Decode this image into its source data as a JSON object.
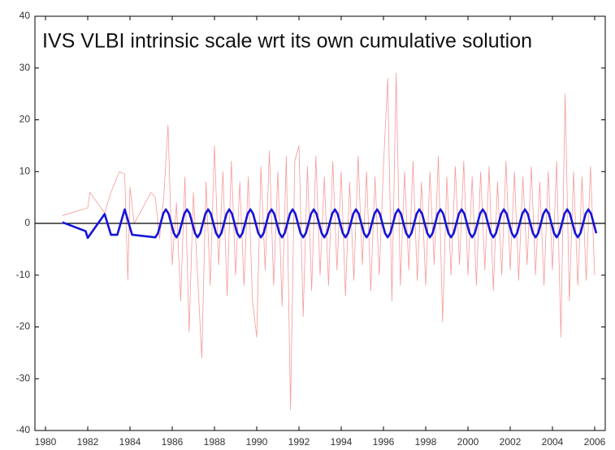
{
  "chart_data": {
    "type": "line",
    "title": "IVS VLBI intrinsic scale wrt its own cumulative solution",
    "xlim": [
      1979.5,
      2006.5
    ],
    "xticks": [
      1980,
      1982,
      1984,
      1986,
      1988,
      1990,
      1992,
      1994,
      1996,
      1998,
      2000,
      2002,
      2004,
      2006
    ],
    "ylim": [
      -40,
      40
    ],
    "yticks": [
      -40,
      -30,
      -20,
      -10,
      0,
      10,
      20,
      30,
      40
    ],
    "zero_line": true,
    "series": [
      {
        "color": "#ee2020",
        "x": [
          1980.8,
          1982.0,
          1982.1,
          1982.8,
          1983.1,
          1983.5,
          1983.75,
          1983.9,
          1984.0,
          1984.2,
          1985.0,
          1985.2,
          1985.4,
          1985.6,
          1985.8,
          1986.0,
          1986.2,
          1986.4,
          1986.6,
          1986.8,
          1987.0,
          1987.2,
          1987.4,
          1987.6,
          1987.8,
          1988.0,
          1988.2,
          1988.4,
          1988.6,
          1988.8,
          1989.0,
          1989.2,
          1989.4,
          1989.6,
          1989.8,
          1990.0,
          1990.2,
          1990.4,
          1990.6,
          1990.8,
          1991.0,
          1991.2,
          1991.4,
          1991.6,
          1991.8,
          1992.0,
          1992.2,
          1992.4,
          1992.6,
          1992.8,
          1993.0,
          1993.2,
          1993.4,
          1993.6,
          1993.8,
          1994.0,
          1994.2,
          1994.4,
          1994.6,
          1994.8,
          1995.0,
          1995.2,
          1995.4,
          1995.6,
          1995.8,
          1996.0,
          1996.2,
          1996.4,
          1996.6,
          1996.8,
          1997.0,
          1997.2,
          1997.4,
          1997.6,
          1997.8,
          1998.0,
          1998.2,
          1998.4,
          1998.6,
          1998.8,
          1999.0,
          1999.2,
          1999.4,
          1999.6,
          1999.8,
          2000.0,
          2000.2,
          2000.4,
          2000.6,
          2000.8,
          2001.0,
          2001.2,
          2001.4,
          2001.6,
          2001.8,
          2002.0,
          2002.2,
          2002.4,
          2002.6,
          2002.8,
          2003.0,
          2003.2,
          2003.4,
          2003.6,
          2003.8,
          2004.0,
          2004.2,
          2004.4,
          2004.6,
          2004.8,
          2005.0,
          2005.2,
          2005.4,
          2005.6,
          2005.8,
          2006.0
        ],
        "values": [
          1.5,
          3,
          6,
          2,
          6,
          10,
          9.5,
          -11,
          7,
          0,
          6,
          5,
          -3,
          5,
          19,
          -8,
          4,
          -15,
          9,
          -21,
          6,
          -10,
          -26,
          8,
          -12,
          15,
          -8,
          10,
          -14,
          12,
          -10,
          8,
          -12,
          9,
          -15,
          -22,
          11,
          -9,
          14,
          -12,
          10,
          -16,
          13,
          -36,
          12,
          15,
          -18,
          11,
          -13,
          13,
          -10,
          9,
          -12,
          12,
          -9,
          10,
          -14,
          8,
          -11,
          13,
          -8,
          10,
          -13,
          9,
          -10,
          11,
          28,
          -15,
          29,
          -12,
          10,
          -9,
          12,
          -11,
          8,
          -12,
          10,
          -8,
          13,
          -19,
          9,
          -10,
          11,
          -8,
          12,
          -10,
          9,
          -12,
          10,
          -9,
          11,
          -13,
          8,
          -10,
          12,
          -9,
          10,
          -11,
          9,
          -8,
          11,
          -10,
          8,
          -12,
          10,
          -9,
          12,
          -22,
          25,
          -15,
          10,
          -12,
          9,
          -11,
          11,
          -10
        ]
      },
      {
        "color": "#1414d8",
        "x": [
          1980.8,
          1981.9,
          1982.0,
          1982.8,
          1983.1,
          1983.4,
          1983.75,
          1984.1,
          1985.2,
          1985.325,
          1985.45,
          1985.575,
          1985.7,
          1985.825,
          1985.95,
          1986.075,
          1986.2,
          1986.325,
          1986.45,
          1986.575,
          1986.7,
          1986.825,
          1986.95,
          1987.075,
          1987.2,
          1987.325,
          1987.45,
          1987.575,
          1987.7,
          1987.825,
          1987.95,
          1988.075,
          1988.2,
          1988.325,
          1988.45,
          1988.575,
          1988.7,
          1988.825,
          1988.95,
          1989.075,
          1989.2,
          1989.325,
          1989.45,
          1989.575,
          1989.7,
          1989.825,
          1989.95,
          1990.075,
          1990.2,
          1990.325,
          1990.45,
          1990.575,
          1990.7,
          1990.825,
          1990.95,
          1991.075,
          1991.2,
          1991.325,
          1991.45,
          1991.575,
          1991.7,
          1991.825,
          1991.95,
          1992.075,
          1992.2,
          1992.325,
          1992.45,
          1992.575,
          1992.7,
          1992.825,
          1992.95,
          1993.075,
          1993.2,
          1993.325,
          1993.45,
          1993.575,
          1993.7,
          1993.825,
          1993.95,
          1994.075,
          1994.2,
          1994.325,
          1994.45,
          1994.575,
          1994.7,
          1994.825,
          1994.95,
          1995.075,
          1995.2,
          1995.325,
          1995.45,
          1995.575,
          1995.7,
          1995.825,
          1995.95,
          1996.075,
          1996.2,
          1996.325,
          1996.45,
          1996.575,
          1996.7,
          1996.825,
          1996.95,
          1997.075,
          1997.2,
          1997.325,
          1997.45,
          1997.575,
          1997.7,
          1997.825,
          1997.95,
          1998.075,
          1998.2,
          1998.325,
          1998.45,
          1998.575,
          1998.7,
          1998.825,
          1998.95,
          1999.075,
          1999.2,
          1999.325,
          1999.45,
          1999.575,
          1999.7,
          1999.825,
          1999.95,
          2000.075,
          2000.2,
          2000.325,
          2000.45,
          2000.575,
          2000.7,
          2000.825,
          2000.95,
          2001.075,
          2001.2,
          2001.325,
          2001.45,
          2001.575,
          2001.7,
          2001.825,
          2001.95,
          2002.075,
          2002.2,
          2002.325,
          2002.45,
          2002.575,
          2002.7,
          2002.825,
          2002.95,
          2003.075,
          2003.2,
          2003.325,
          2003.45,
          2003.575,
          2003.7,
          2003.825,
          2003.95,
          2004.075,
          2004.2,
          2004.325,
          2004.45,
          2004.575,
          2004.7,
          2004.825,
          2004.95,
          2005.075,
          2005.2,
          2005.325,
          2005.45,
          2005.575,
          2005.7,
          2005.825,
          2005.95,
          2006.075
        ],
        "values": [
          0.2,
          -1.5,
          -2.8,
          1.8,
          -2.2,
          -2.2,
          2.7,
          -2.2,
          -2.7,
          -1.9,
          0,
          1.9,
          2.7,
          1.9,
          0,
          -1.9,
          -2.7,
          -1.9,
          0,
          1.9,
          2.7,
          1.9,
          0,
          -1.9,
          -2.7,
          -1.9,
          0,
          1.9,
          2.7,
          1.9,
          0,
          -1.9,
          -2.7,
          -1.9,
          0,
          1.9,
          2.7,
          1.9,
          0,
          -1.9,
          -2.7,
          -1.9,
          0,
          1.9,
          2.7,
          1.9,
          0,
          -1.9,
          -2.7,
          -1.9,
          0,
          1.9,
          2.7,
          1.9,
          0,
          -1.9,
          -2.7,
          -1.9,
          0,
          1.9,
          2.7,
          1.9,
          0,
          -1.9,
          -2.7,
          -1.9,
          0,
          1.9,
          2.7,
          1.9,
          0,
          -1.9,
          -2.7,
          -1.9,
          0,
          1.9,
          2.7,
          1.9,
          0,
          -1.9,
          -2.7,
          -1.9,
          0,
          1.9,
          2.7,
          1.9,
          0,
          -1.9,
          -2.7,
          -1.9,
          0,
          1.9,
          2.7,
          1.9,
          0,
          -1.9,
          -2.7,
          -1.9,
          0,
          1.9,
          2.7,
          1.9,
          0,
          -1.9,
          -2.7,
          -1.9,
          0,
          1.9,
          2.7,
          1.9,
          0,
          -1.9,
          -2.7,
          -1.9,
          0,
          1.9,
          2.7,
          1.9,
          0,
          -1.9,
          -2.7,
          -1.9,
          0,
          1.9,
          2.7,
          1.9,
          0,
          -1.9,
          -2.7,
          -1.9,
          0,
          1.9,
          2.7,
          1.9,
          0,
          -1.9,
          -2.7,
          -1.9,
          0,
          1.9,
          2.7,
          1.9,
          0,
          -1.9,
          -2.7,
          -1.9,
          0,
          1.9,
          2.7,
          1.9,
          0,
          -1.9,
          -2.7,
          -1.9,
          0,
          1.9,
          2.7,
          1.9,
          0,
          -1.9,
          -2.7,
          -1.9,
          0,
          1.9,
          2.7,
          1.9,
          0,
          -1.9,
          -2.7,
          -1.9,
          0,
          1.9,
          2.7,
          1.9,
          0,
          -1.9
        ]
      }
    ]
  }
}
